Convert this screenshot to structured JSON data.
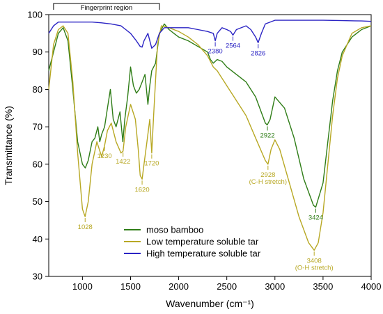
{
  "chart_data": {
    "type": "line",
    "title": "",
    "xlabel": "Wavenumber (cm⁻¹)",
    "ylabel": "Transmittance (%)",
    "xlim": [
      650,
      4000
    ],
    "ylim": [
      30,
      100
    ],
    "xticks": [
      1000,
      1500,
      2000,
      2500,
      3000,
      3500,
      4000
    ],
    "yticks": [
      30,
      40,
      50,
      60,
      70,
      80,
      90,
      100
    ],
    "tick_labels_x": [
      "1000",
      "1500",
      "2000",
      "2500",
      "3000",
      "3500",
      "4000"
    ],
    "tick_labels_y": [
      "30",
      "40",
      "50",
      "60",
      "70",
      "80",
      "90",
      "100"
    ],
    "legend_position": "bottom-center",
    "region": {
      "label": "Fingerprint region",
      "from": 700,
      "to": 1800
    },
    "series": [
      {
        "name": "moso bamboo",
        "color": "#2f7d17",
        "points": [
          [
            650,
            85
          ],
          [
            700,
            90
          ],
          [
            750,
            95
          ],
          [
            800,
            96.5
          ],
          [
            850,
            93
          ],
          [
            900,
            80
          ],
          [
            950,
            66
          ],
          [
            1000,
            60
          ],
          [
            1030,
            59
          ],
          [
            1060,
            61
          ],
          [
            1100,
            66
          ],
          [
            1130,
            67
          ],
          [
            1160,
            70
          ],
          [
            1180,
            66
          ],
          [
            1200,
            68
          ],
          [
            1230,
            70
          ],
          [
            1260,
            75
          ],
          [
            1290,
            80
          ],
          [
            1320,
            72
          ],
          [
            1350,
            70
          ],
          [
            1390,
            74
          ],
          [
            1420,
            66
          ],
          [
            1440,
            72
          ],
          [
            1470,
            78
          ],
          [
            1500,
            86
          ],
          [
            1530,
            81
          ],
          [
            1560,
            79
          ],
          [
            1590,
            80
          ],
          [
            1620,
            82
          ],
          [
            1650,
            84
          ],
          [
            1680,
            76
          ],
          [
            1700,
            81
          ],
          [
            1720,
            85
          ],
          [
            1760,
            87
          ],
          [
            1800,
            95
          ],
          [
            1850,
            97.5
          ],
          [
            1900,
            96
          ],
          [
            1950,
            95
          ],
          [
            2000,
            94
          ],
          [
            2100,
            93
          ],
          [
            2200,
            91.5
          ],
          [
            2300,
            90
          ],
          [
            2330,
            88
          ],
          [
            2360,
            87
          ],
          [
            2400,
            88
          ],
          [
            2450,
            87.5
          ],
          [
            2500,
            86
          ],
          [
            2600,
            84
          ],
          [
            2700,
            82
          ],
          [
            2800,
            78
          ],
          [
            2900,
            71
          ],
          [
            2920,
            70.5
          ],
          [
            2950,
            72
          ],
          [
            3000,
            78
          ],
          [
            3100,
            75
          ],
          [
            3200,
            67
          ],
          [
            3300,
            56
          ],
          [
            3400,
            49
          ],
          [
            3424,
            48.5
          ],
          [
            3500,
            55
          ],
          [
            3550,
            66
          ],
          [
            3600,
            77
          ],
          [
            3650,
            85
          ],
          [
            3700,
            90
          ],
          [
            3800,
            94
          ],
          [
            3900,
            96
          ],
          [
            4000,
            97
          ]
        ]
      },
      {
        "name": "Low temperature soluble tar",
        "color": "#b8a824",
        "points": [
          [
            650,
            80
          ],
          [
            700,
            92
          ],
          [
            750,
            96
          ],
          [
            800,
            97
          ],
          [
            850,
            95
          ],
          [
            900,
            82
          ],
          [
            950,
            63
          ],
          [
            1000,
            48
          ],
          [
            1028,
            46
          ],
          [
            1060,
            50
          ],
          [
            1100,
            60
          ],
          [
            1150,
            66
          ],
          [
            1200,
            62
          ],
          [
            1230,
            65
          ],
          [
            1260,
            69
          ],
          [
            1300,
            71
          ],
          [
            1350,
            66
          ],
          [
            1400,
            63
          ],
          [
            1422,
            63.5
          ],
          [
            1450,
            70
          ],
          [
            1500,
            76
          ],
          [
            1550,
            72
          ],
          [
            1580,
            64
          ],
          [
            1600,
            57
          ],
          [
            1620,
            56
          ],
          [
            1640,
            60
          ],
          [
            1670,
            66
          ],
          [
            1700,
            72
          ],
          [
            1720,
            63
          ],
          [
            1740,
            73
          ],
          [
            1780,
            92
          ],
          [
            1820,
            97
          ],
          [
            1900,
            96.5
          ],
          [
            2000,
            95.5
          ],
          [
            2100,
            94
          ],
          [
            2200,
            92
          ],
          [
            2300,
            89
          ],
          [
            2360,
            86
          ],
          [
            2400,
            85
          ],
          [
            2500,
            81
          ],
          [
            2600,
            77
          ],
          [
            2700,
            73
          ],
          [
            2800,
            67
          ],
          [
            2900,
            61
          ],
          [
            2928,
            60
          ],
          [
            2960,
            64
          ],
          [
            3000,
            66.5
          ],
          [
            3050,
            64
          ],
          [
            3150,
            55
          ],
          [
            3250,
            46
          ],
          [
            3350,
            39
          ],
          [
            3408,
            37
          ],
          [
            3450,
            39
          ],
          [
            3500,
            47
          ],
          [
            3550,
            60
          ],
          [
            3600,
            73
          ],
          [
            3650,
            83
          ],
          [
            3700,
            89
          ],
          [
            3800,
            95
          ],
          [
            3900,
            96.5
          ],
          [
            4000,
            97
          ]
        ]
      },
      {
        "name": "High temperature soluble tar",
        "color": "#2b24c4",
        "points": [
          [
            650,
            95
          ],
          [
            700,
            97
          ],
          [
            750,
            98
          ],
          [
            900,
            98
          ],
          [
            1100,
            98
          ],
          [
            1200,
            97.8
          ],
          [
            1300,
            97.5
          ],
          [
            1400,
            97
          ],
          [
            1450,
            96
          ],
          [
            1500,
            95
          ],
          [
            1560,
            93
          ],
          [
            1600,
            91.5
          ],
          [
            1620,
            91.3
          ],
          [
            1640,
            93
          ],
          [
            1680,
            95
          ],
          [
            1720,
            91
          ],
          [
            1760,
            92
          ],
          [
            1800,
            95
          ],
          [
            1850,
            96.5
          ],
          [
            1900,
            96.5
          ],
          [
            2000,
            96.5
          ],
          [
            2100,
            96.5
          ],
          [
            2200,
            96
          ],
          [
            2300,
            95.5
          ],
          [
            2360,
            95
          ],
          [
            2380,
            93
          ],
          [
            2400,
            95
          ],
          [
            2450,
            96.5
          ],
          [
            2500,
            96
          ],
          [
            2540,
            95.5
          ],
          [
            2564,
            94.5
          ],
          [
            2600,
            96
          ],
          [
            2700,
            97
          ],
          [
            2750,
            96
          ],
          [
            2800,
            94
          ],
          [
            2826,
            92.5
          ],
          [
            2860,
            95
          ],
          [
            2900,
            97.5
          ],
          [
            3000,
            98.5
          ],
          [
            3200,
            98.5
          ],
          [
            3500,
            98.5
          ],
          [
            3700,
            98.4
          ],
          [
            3900,
            98.3
          ],
          [
            4000,
            98.2
          ]
        ]
      }
    ],
    "annotations": [
      {
        "text": "1028",
        "x": 1028,
        "y": 46,
        "color": "#b8a824"
      },
      {
        "text": "1230",
        "x": 1230,
        "y": 65,
        "color": "#b8a824"
      },
      {
        "text": "1422",
        "x": 1422,
        "y": 63.5,
        "color": "#b8a824"
      },
      {
        "text": "1620",
        "x": 1620,
        "y": 56,
        "color": "#b8a824"
      },
      {
        "text": "1720",
        "x": 1720,
        "y": 63,
        "color": "#b8a824"
      },
      {
        "text": "2380",
        "x": 2380,
        "y": 93,
        "color": "#2b24c4"
      },
      {
        "text": "2564",
        "x": 2564,
        "y": 94.5,
        "color": "#2b24c4"
      },
      {
        "text": "2826",
        "x": 2826,
        "y": 92.5,
        "color": "#2b24c4"
      },
      {
        "text": "2922",
        "x": 2922,
        "y": 70.5,
        "color": "#2f7d17"
      },
      {
        "text": "2928",
        "sub": "(C-H stretch)",
        "x": 2928,
        "y": 60,
        "color": "#b8a824"
      },
      {
        "text": "3424",
        "x": 3424,
        "y": 48.5,
        "color": "#2f7d17"
      },
      {
        "text": "3408",
        "sub": "(O-H stretch)",
        "x": 3408,
        "y": 37,
        "color": "#b8a824"
      }
    ]
  }
}
